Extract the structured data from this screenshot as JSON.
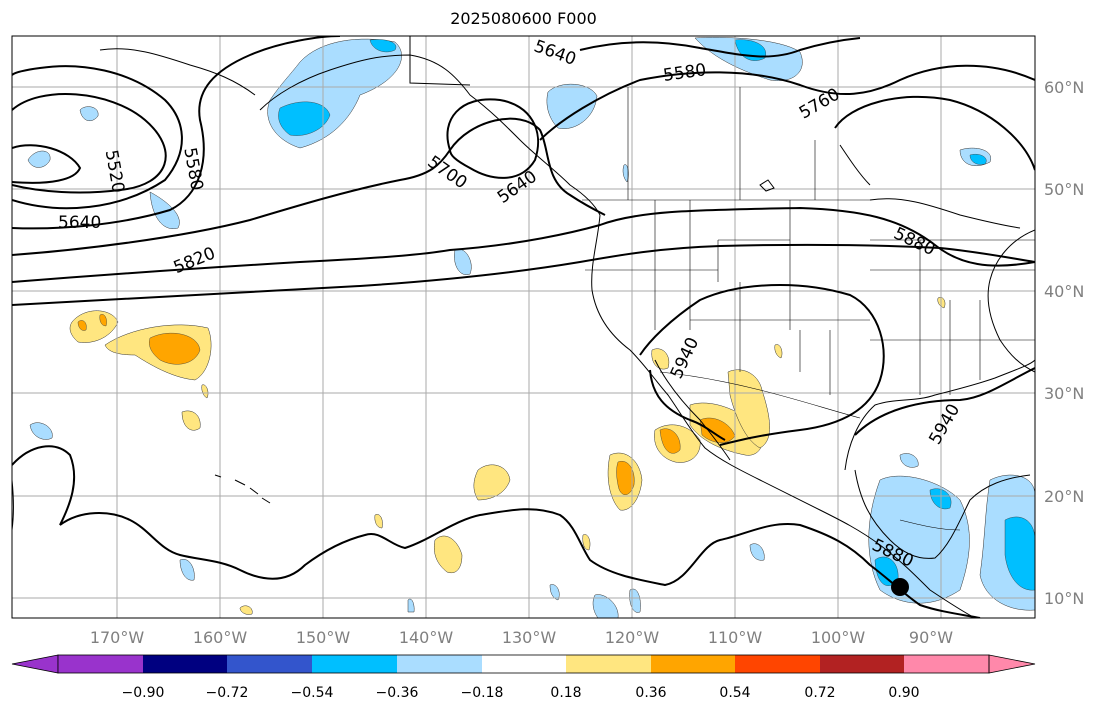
{
  "title": "2025080600 F000",
  "lon_ticks": [
    "170°W",
    "160°W",
    "150°W",
    "140°W",
    "130°W",
    "120°W",
    "110°W",
    "100°W",
    "90°W"
  ],
  "lat_ticks": [
    "60°N",
    "50°N",
    "40°N",
    "30°N",
    "20°N",
    "10°N"
  ],
  "colorbar": {
    "tick_labels": [
      "−0.90",
      "−0.72",
      "−0.54",
      "−0.36",
      "−0.18",
      "0.18",
      "0.36",
      "0.54",
      "0.72",
      "0.90"
    ],
    "colors": [
      "#9933cc",
      "#000080",
      "#3355cc",
      "#00bfff",
      "#aaddff",
      "#ffffff",
      "#ffe680",
      "#ffa500",
      "#ff4500",
      "#b22222",
      "#ff88aa"
    ]
  },
  "contour_labels": [
    "5640",
    "5580",
    "5760",
    "5520",
    "5580",
    "5640",
    "5700",
    "5640",
    "5820",
    "5880",
    "5940",
    "5940",
    "5880"
  ],
  "marker": {
    "lon": -93,
    "lat": 11,
    "color": "#000000"
  }
}
